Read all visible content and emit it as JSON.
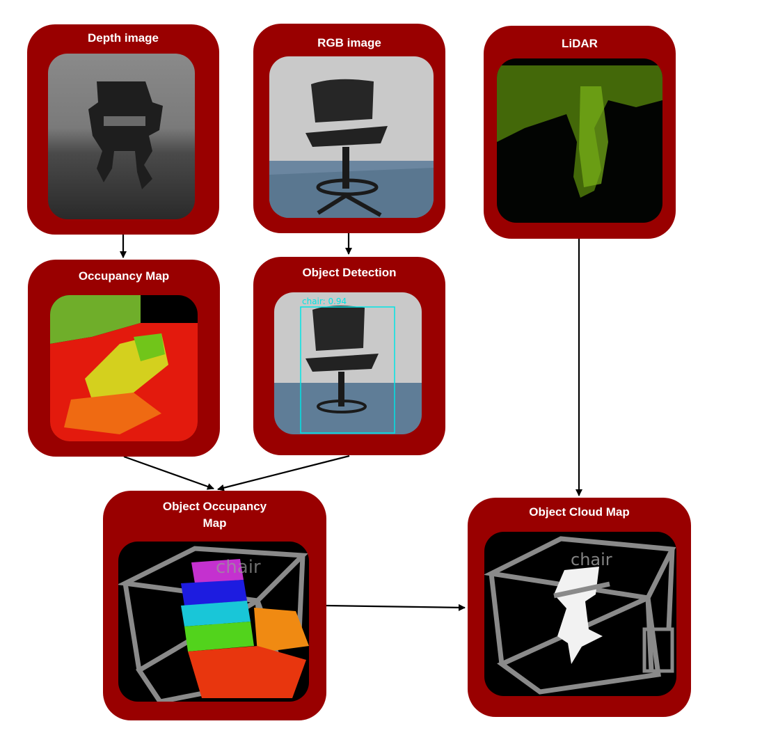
{
  "nodes": {
    "depth": {
      "title": "Depth image"
    },
    "rgb": {
      "title": "RGB image"
    },
    "lidar": {
      "title": "LiDAR"
    },
    "occupancy": {
      "title": "Occupancy Map"
    },
    "detection": {
      "title": "Object Detection",
      "bbox_label": "chair: 0.94"
    },
    "obj_occupancy": {
      "title_line1": "Object Occupancy",
      "title_line2": "Map",
      "overlay_label": "chair"
    },
    "obj_cloud": {
      "title": "Object Cloud Map",
      "overlay_label": "chair"
    }
  },
  "colors": {
    "card": "#990000",
    "title_text": "#ffffff",
    "arrow": "#000000",
    "bbox": "#00e5e5",
    "frame": "#8a8a8a"
  },
  "edges": [
    {
      "from": "depth",
      "to": "occupancy"
    },
    {
      "from": "rgb",
      "to": "detection"
    },
    {
      "from": "occupancy",
      "to": "obj_occupancy"
    },
    {
      "from": "detection",
      "to": "obj_occupancy"
    },
    {
      "from": "lidar",
      "to": "obj_cloud"
    },
    {
      "from": "obj_occupancy",
      "to": "obj_cloud"
    }
  ]
}
